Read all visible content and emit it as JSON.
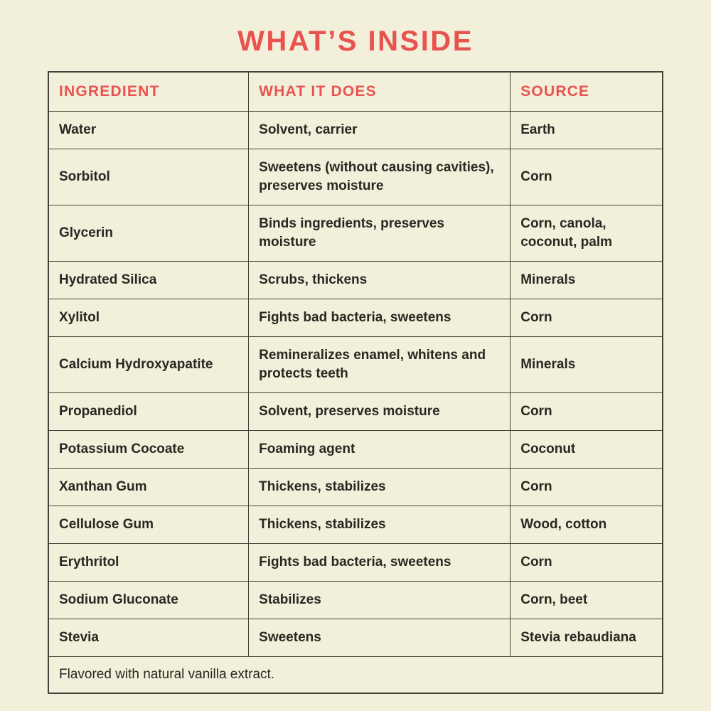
{
  "page": {
    "title": "WHAT’S INSIDE"
  },
  "colors": {
    "background": "#f2efda",
    "accent_red": "#e9534f",
    "text_dark": "#2a2722",
    "border": "#44423a"
  },
  "table": {
    "headers": [
      "INGREDIENT",
      "WHAT IT DOES",
      "SOURCE"
    ],
    "rows": [
      {
        "ingredient": "Water",
        "what_it_does": "Solvent, carrier",
        "source": "Earth"
      },
      {
        "ingredient": "Sorbitol",
        "what_it_does": "Sweetens (without causing cavities), preserves moisture",
        "source": "Corn"
      },
      {
        "ingredient": "Glycerin",
        "what_it_does": "Binds ingredients, preserves moisture",
        "source": "Corn, canola, coconut, palm"
      },
      {
        "ingredient": "Hydrated Silica",
        "what_it_does": "Scrubs, thickens",
        "source": "Minerals"
      },
      {
        "ingredient": "Xylitol",
        "what_it_does": "Fights bad bacteria, sweetens",
        "source": "Corn"
      },
      {
        "ingredient": "Calcium Hydroxyapatite",
        "what_it_does": "Remineralizes enamel, whitens and protects teeth",
        "source": "Minerals"
      },
      {
        "ingredient": "Propanediol",
        "what_it_does": "Solvent, preserves moisture",
        "source": "Corn"
      },
      {
        "ingredient": "Potassium Cocoate",
        "what_it_does": "Foaming agent",
        "source": "Coconut"
      },
      {
        "ingredient": "Xanthan Gum",
        "what_it_does": "Thickens, stabilizes",
        "source": "Corn"
      },
      {
        "ingredient": "Cellulose Gum",
        "what_it_does": "Thickens, stabilizes",
        "source": "Wood, cotton"
      },
      {
        "ingredient": "Erythritol",
        "what_it_does": "Fights bad bacteria, sweetens",
        "source": "Corn"
      },
      {
        "ingredient": "Sodium Gluconate",
        "what_it_does": "Stabilizes",
        "source": "Corn, beet"
      },
      {
        "ingredient": "Stevia",
        "what_it_does": "Sweetens",
        "source": "Stevia rebaudiana"
      }
    ],
    "footnote": "Flavored with natural vanilla extract."
  }
}
